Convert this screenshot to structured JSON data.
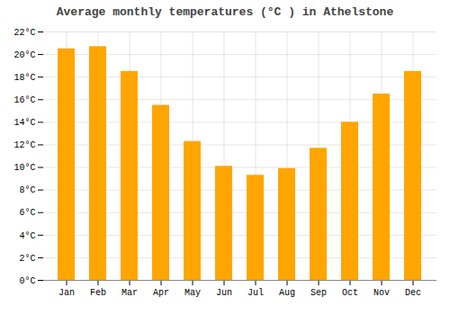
{
  "chart_data": {
    "type": "bar",
    "title": "Average monthly temperatures (°C ) in Athelstone",
    "categories": [
      "Jan",
      "Feb",
      "Mar",
      "Apr",
      "May",
      "Jun",
      "Jul",
      "Aug",
      "Sep",
      "Oct",
      "Nov",
      "Dec"
    ],
    "values": [
      20.5,
      20.7,
      18.5,
      15.5,
      12.3,
      10.1,
      9.3,
      9.9,
      11.7,
      14.0,
      16.5,
      18.5
    ],
    "color": "#FFA500",
    "ylim": [
      0,
      22
    ],
    "yticks": [
      {
        "value": 0,
        "label": "0°C"
      },
      {
        "value": 2,
        "label": "2°C"
      },
      {
        "value": 4,
        "label": "4°C"
      },
      {
        "value": 6,
        "label": "6°C"
      },
      {
        "value": 8,
        "label": "8°C"
      },
      {
        "value": 10,
        "label": "10°C"
      },
      {
        "value": 12,
        "label": "12°C"
      },
      {
        "value": 14,
        "label": "14°C"
      },
      {
        "value": 16,
        "label": "16°C"
      },
      {
        "value": 18,
        "label": "18°C"
      },
      {
        "value": 20,
        "label": "20°C"
      },
      {
        "value": 22,
        "label": "22°C"
      }
    ],
    "grid": true
  }
}
